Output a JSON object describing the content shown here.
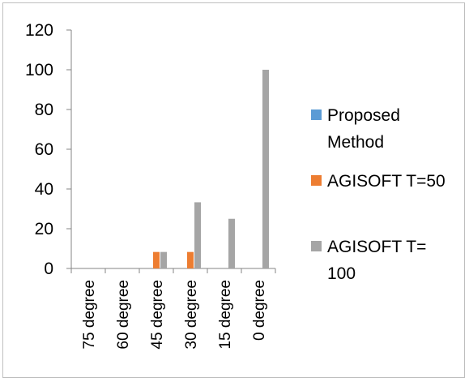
{
  "chart_data": {
    "type": "bar",
    "categories": [
      "75 degree",
      "60 degree",
      "45 degree",
      "30 degree",
      "15 degree",
      "0 degree"
    ],
    "series": [
      {
        "name": "Proposed Method",
        "color": "#5B9BD5",
        "values": [
          0,
          0,
          0,
          0,
          0,
          0
        ]
      },
      {
        "name": "AGISOFT T=50",
        "color": "#ED7D31",
        "values": [
          0,
          0,
          8.3,
          8.3,
          0,
          0
        ]
      },
      {
        "name": "AGISOFT T= 100",
        "color": "#A5A5A5",
        "values": [
          0,
          0,
          8.3,
          33.3,
          25,
          100
        ]
      }
    ],
    "yticks": [
      "0",
      "20",
      "40",
      "60",
      "80",
      "100",
      "120"
    ],
    "ylim": [
      0,
      120
    ],
    "legend_position": "right",
    "grid": false
  },
  "legend": {
    "items": [
      {
        "lines": [
          "Proposed",
          "Method"
        ],
        "color": "#5B9BD5"
      },
      {
        "lines": [
          "AGISOFT T=50"
        ],
        "color": "#ED7D31"
      },
      {
        "lines": [
          "AGISOFT T=",
          "100"
        ],
        "color": "#A5A5A5"
      }
    ]
  }
}
